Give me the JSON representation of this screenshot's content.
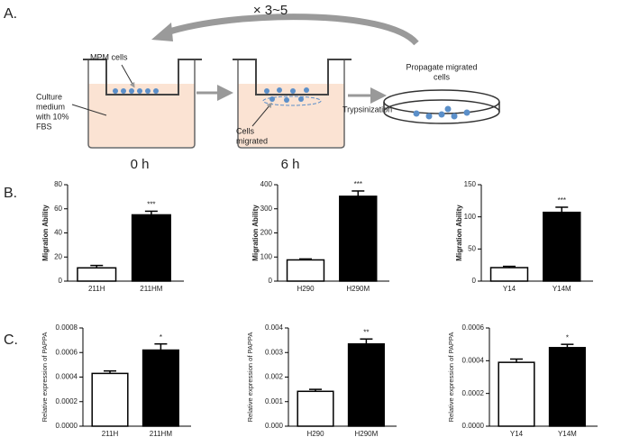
{
  "panels": [
    "A.",
    "B.",
    "C."
  ],
  "diagram": {
    "repeat": "× 3~5",
    "mpm_cells": "MPM cells",
    "medium": [
      "Culture",
      "medium",
      "with 10%",
      "FBS"
    ],
    "time0": "0 h",
    "time6": "6 h",
    "migrated": [
      "Cells",
      "migrated"
    ],
    "trypsin": "Trypsinization",
    "propagate": [
      "Propagate migrated",
      "cells"
    ]
  },
  "chart_data": [
    {
      "type": "bar",
      "ylabel": "Migration Ability",
      "categories": [
        "211H",
        "211HM"
      ],
      "values": [
        11,
        55
      ],
      "errors": [
        2,
        3
      ],
      "colors": [
        "#ffffff",
        "#000000"
      ],
      "significance": "***",
      "ylim": [
        0,
        80
      ],
      "yticks": [
        0,
        20,
        40,
        60,
        80
      ]
    },
    {
      "type": "bar",
      "ylabel": "Migration Ability",
      "categories": [
        "H290",
        "H290M"
      ],
      "values": [
        88,
        352
      ],
      "errors": [
        4,
        22
      ],
      "colors": [
        "#ffffff",
        "#000000"
      ],
      "significance": "***",
      "ylim": [
        0,
        400
      ],
      "yticks": [
        0,
        100,
        200,
        300,
        400
      ]
    },
    {
      "type": "bar",
      "ylabel": "Migration Ability",
      "categories": [
        "Y14",
        "Y14M"
      ],
      "values": [
        21,
        107
      ],
      "errors": [
        2,
        8
      ],
      "colors": [
        "#ffffff",
        "#000000"
      ],
      "significance": "***",
      "ylim": [
        0,
        150
      ],
      "yticks": [
        0,
        50,
        100,
        150
      ]
    },
    {
      "type": "bar",
      "ylabel": "Relative expression of PAPPA",
      "categories": [
        "211H",
        "211HM"
      ],
      "values": [
        0.00043,
        0.00062
      ],
      "errors": [
        2e-05,
        5e-05
      ],
      "colors": [
        "#ffffff",
        "#000000"
      ],
      "significance": "*",
      "ylim": [
        0,
        0.0008
      ],
      "yticks": [
        {
          "value": 0,
          "label": "0.0000"
        },
        {
          "value": 0.0002,
          "label": "0.0002"
        },
        {
          "value": 0.0004,
          "label": "0.0004"
        },
        {
          "value": 0.0006,
          "label": "0.0006"
        },
        {
          "value": 0.0008,
          "label": "0.0008"
        }
      ]
    },
    {
      "type": "bar",
      "ylabel": "Relative expression of PAPPA",
      "categories": [
        "H290",
        "H290M"
      ],
      "values": [
        0.00142,
        0.00335
      ],
      "errors": [
        8e-05,
        0.0002
      ],
      "colors": [
        "#ffffff",
        "#000000"
      ],
      "significance": "**",
      "ylim": [
        0,
        0.004
      ],
      "yticks": [
        {
          "value": 0,
          "label": "0.000"
        },
        {
          "value": 0.001,
          "label": "0.001"
        },
        {
          "value": 0.002,
          "label": "0.002"
        },
        {
          "value": 0.003,
          "label": "0.003"
        },
        {
          "value": 0.004,
          "label": "0.004"
        }
      ]
    },
    {
      "type": "bar",
      "ylabel": "Relative expression of PAPPA",
      "categories": [
        "Y14",
        "Y14M"
      ],
      "values": [
        0.00039,
        0.00048
      ],
      "errors": [
        2e-05,
        2e-05
      ],
      "colors": [
        "#ffffff",
        "#000000"
      ],
      "significance": "*",
      "ylim": [
        0,
        0.0006
      ],
      "yticks": [
        {
          "value": 0,
          "label": "0.0000"
        },
        {
          "value": 0.0002,
          "label": "0.0002"
        },
        {
          "value": 0.0004,
          "label": "0.0004"
        },
        {
          "value": 0.0006,
          "label": "0.0006"
        }
      ]
    }
  ]
}
